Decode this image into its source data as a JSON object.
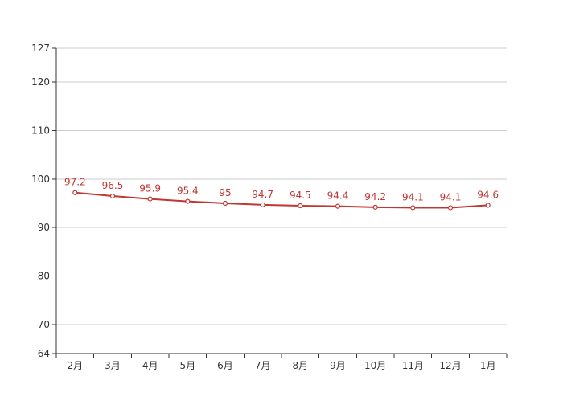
{
  "chart_data": {
    "type": "line",
    "categories": [
      "2月",
      "3月",
      "4月",
      "5月",
      "6月",
      "7月",
      "8月",
      "9月",
      "10月",
      "11月",
      "12月",
      "1月"
    ],
    "series": [
      {
        "values": [
          97.2,
          96.5,
          95.9,
          95.4,
          95,
          94.7,
          94.5,
          94.4,
          94.2,
          94.1,
          94.1,
          94.6
        ],
        "labels": [
          "97.2",
          "96.5",
          "95.9",
          "95.4",
          "95",
          "94.7",
          "94.5",
          "94.4",
          "94.2",
          "94.1",
          "94.1",
          "94.6"
        ]
      }
    ],
    "ylim": [
      64,
      127
    ],
    "y_ticks": [
      64,
      70,
      80,
      90,
      100,
      110,
      120,
      127
    ],
    "y_tick_labels": [
      "64",
      "70",
      "80",
      "90",
      "100",
      "110",
      "120",
      "127"
    ],
    "grid": "horizontal",
    "legend": "none",
    "colors": {
      "line": "#c23531",
      "marker_fill": "#ffffff",
      "label": "#c23531",
      "grid": "#cccccc",
      "axis": "#333333"
    }
  }
}
